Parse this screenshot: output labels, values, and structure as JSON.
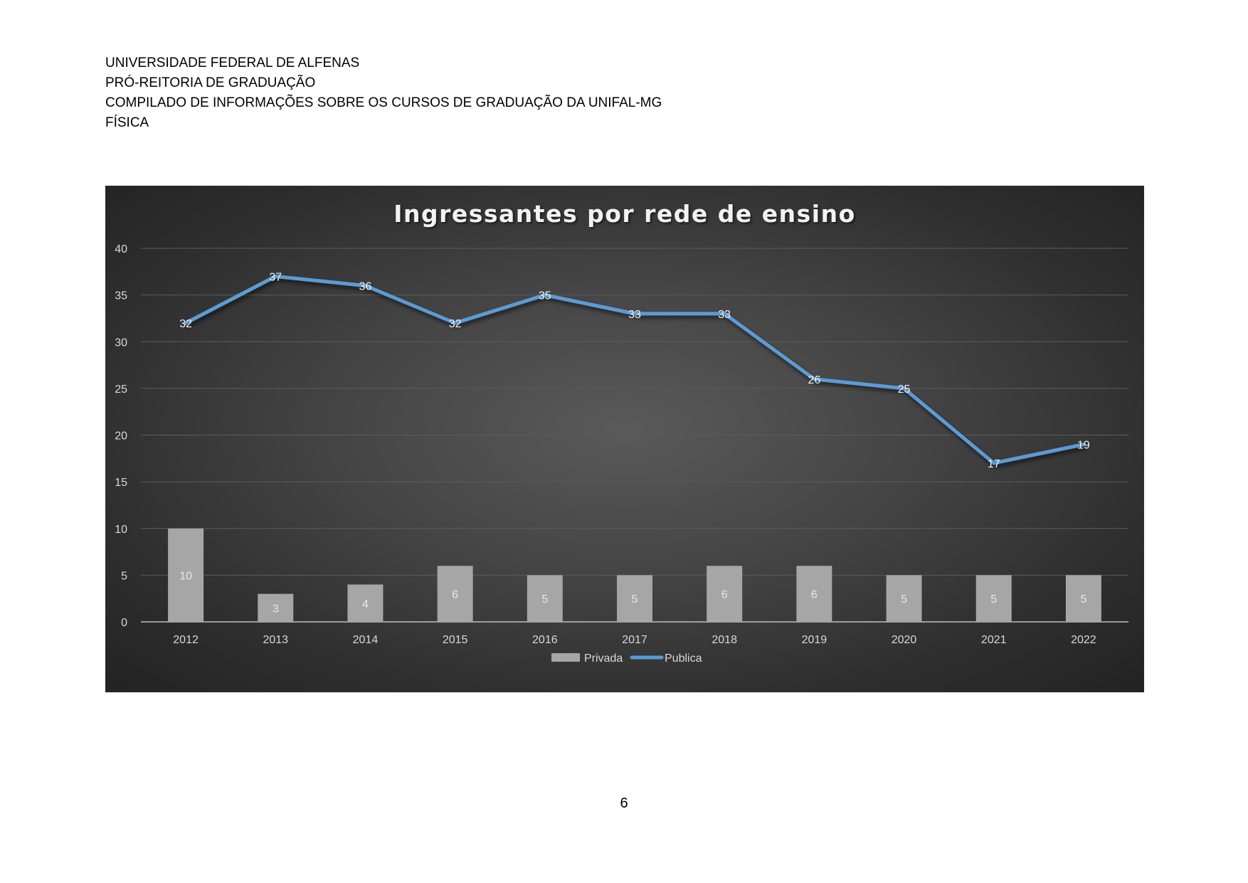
{
  "header": {
    "line1": "UNIVERSIDADE FEDERAL DE ALFENAS",
    "line2": "PRÓ-REITORIA DE GRADUAÇÃO",
    "line3": "COMPILADO DE INFORMAÇÕES SOBRE OS CURSOS DE GRADUAÇÃO DA UNIFAL-MG",
    "line4": "FÍSICA"
  },
  "page_number": "6",
  "colors": {
    "bar": "#a6a6a6",
    "line": "#5b9bd5",
    "text": "#d9d9d9",
    "grid": "#5c5c5c"
  },
  "chart_data": {
    "type": "bar",
    "title": "Ingressantes por rede de ensino",
    "categories": [
      "2012",
      "2013",
      "2014",
      "2015",
      "2016",
      "2017",
      "2018",
      "2019",
      "2020",
      "2021",
      "2022"
    ],
    "series": [
      {
        "name": "Privada",
        "type": "bar",
        "values": [
          10,
          3,
          4,
          6,
          5,
          5,
          6,
          6,
          5,
          5,
          5
        ]
      },
      {
        "name": "Publica",
        "type": "line",
        "values": [
          32,
          37,
          36,
          32,
          35,
          33,
          33,
          26,
          25,
          17,
          19
        ]
      }
    ],
    "ylim": [
      0,
      40
    ],
    "yticks": [
      0,
      5,
      10,
      15,
      20,
      25,
      30,
      35,
      40
    ],
    "grid": true,
    "legend": "bottom-center"
  }
}
